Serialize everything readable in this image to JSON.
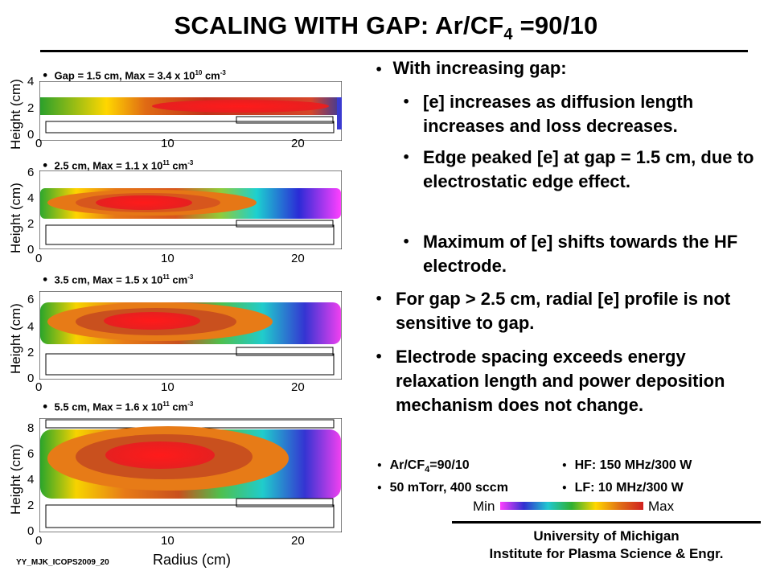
{
  "title_main": "SCALING WITH GAP: Ar/CF",
  "title_sub": "4",
  "title_end": " =90/10",
  "plots": [
    {
      "caption": "Gap = 1.5 cm, Max = 3.4 x 10",
      "exp": "10",
      "unit": " cm",
      "unit_exp": "-3",
      "yticks": [
        "4",
        "2",
        "0"
      ],
      "xticks": [
        "0",
        "10",
        "20"
      ]
    },
    {
      "caption": "2.5 cm, Max = 1.1 x 10",
      "exp": "11",
      "unit": " cm",
      "unit_exp": "-3",
      "yticks": [
        "6",
        "4",
        "2",
        "0"
      ],
      "xticks": [
        "0",
        "10",
        "20"
      ]
    },
    {
      "caption": "3.5 cm, Max = 1.5 x 10",
      "exp": "11",
      "unit": " cm",
      "unit_exp": "-3",
      "yticks": [
        "6",
        "4",
        "2",
        "0"
      ],
      "xticks": [
        "0",
        "10",
        "20"
      ]
    },
    {
      "caption": "5.5 cm, Max = 1.6 x 10",
      "exp": "11",
      "unit": " cm",
      "unit_exp": "-3",
      "yticks": [
        "8",
        "6",
        "4",
        "2",
        "0"
      ],
      "xticks": [
        "0",
        "10",
        "20"
      ]
    }
  ],
  "ylabel": "Height (cm)",
  "xlabel": "Radius (cm)",
  "bullets": {
    "b1": "With increasing gap:",
    "b1a": "[e] increases as diffusion length increases and loss decreases.",
    "b1b": "Edge peaked [e] at gap = 1.5 cm, due to electrostatic edge effect.",
    "b1c": "Maximum of [e] shifts towards the HF electrode.",
    "b2": "For gap > 2.5 cm, radial [e] profile is not sensitive to gap.",
    "b3": "Electrode spacing exceeds energy relaxation length and power deposition mechanism does not change."
  },
  "conditions": {
    "c1_pre": "Ar/CF",
    "c1_sub": "4",
    "c1_post": "=90/10",
    "c2": "50 mTorr, 400 sccm",
    "c3": "HF: 150 MHz/300 W",
    "c4": "LF: 10 MHz/300 W"
  },
  "colorbar": {
    "min": "Min",
    "max": "Max"
  },
  "footer": {
    "line1": "University of Michigan",
    "line2": "Institute for Plasma Science & Engr."
  },
  "slide_id": "YY_MJK_ICOPS2009_20"
}
